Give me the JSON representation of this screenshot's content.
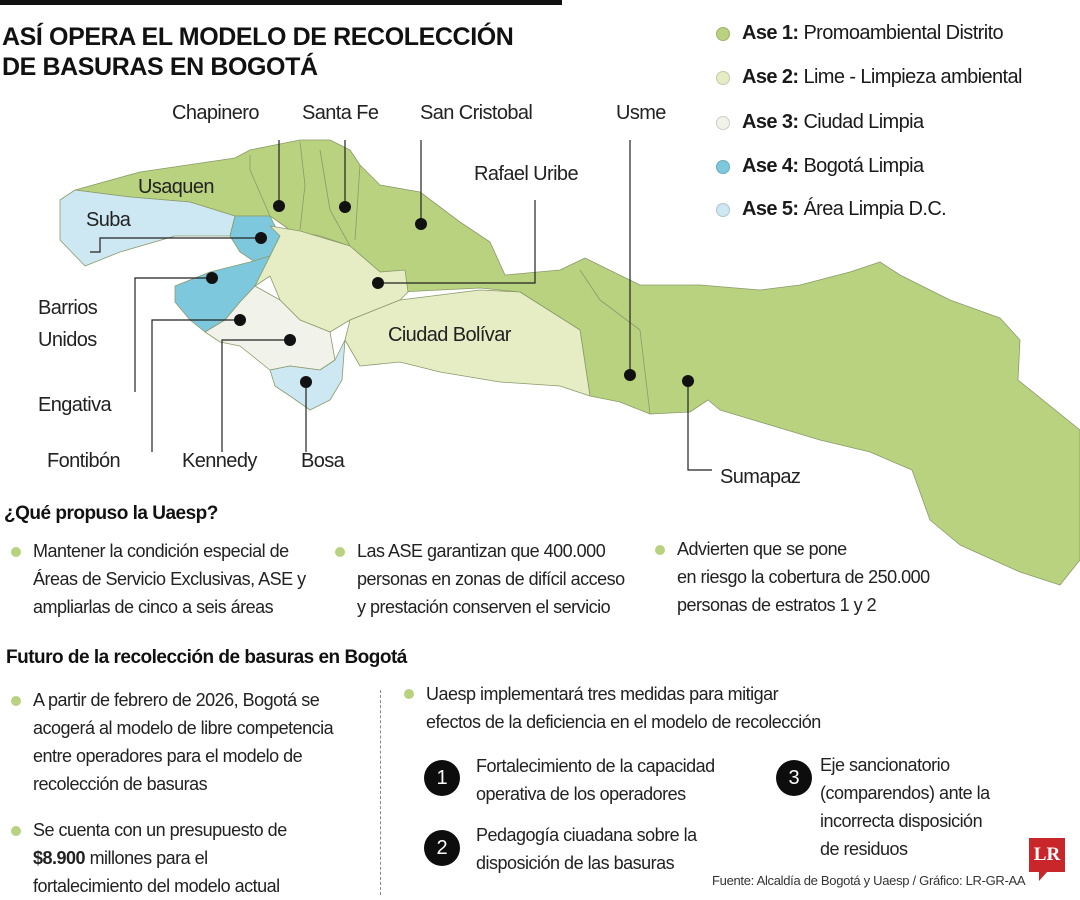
{
  "title": {
    "line1": "ASÍ OPERA EL MODELO DE RECOLECCIÓN",
    "line2": "DE BASURAS EN BOGOTÁ"
  },
  "legend": [
    {
      "key": "Ase 1:",
      "label": "Promoambiental Distrito",
      "color": "#b9d27f"
    },
    {
      "key": "Ase 2:",
      "label": "Lime - Limpieza ambiental",
      "color": "#e6edc4"
    },
    {
      "key": "Ase 3:",
      "label": "Ciudad Limpia",
      "color": "#f1f2ea"
    },
    {
      "key": "Ase 4:",
      "label": "Bogotá Limpia",
      "color": "#7ec8dd"
    },
    {
      "key": "Ase 5:",
      "label": "Área Limpia D.C.",
      "color": "#cde8f2"
    }
  ],
  "map_labels": {
    "chapinero": "Chapinero",
    "santa_fe": "Santa Fe",
    "san_cristobal": "San Cristobal",
    "usme": "Usme",
    "rafael_uribe": "Rafael Uribe",
    "usaquen": "Usaquen",
    "suba": "Suba",
    "barrios_unidos_1": "Barrios",
    "barrios_unidos_2": "Unidos",
    "engativa": "Engativa",
    "fontibon": "Fontibón",
    "kennedy": "Kennedy",
    "bosa": "Bosa",
    "ciudad_bolivar": "Ciudad Bolívar",
    "sumapaz": "Sumapaz"
  },
  "uaesp": {
    "heading": "¿Qué propuso la Uaesp?",
    "items": [
      [
        "Mantener la condición especial de",
        "Áreas de Servicio Exclusivas, ASE y",
        "ampliarlas de cinco a seis áreas"
      ],
      [
        "Las ASE garantizan que 400.000",
        "personas en zonas de difícil acceso",
        "y prestación conserven el servicio"
      ],
      [
        "Advierten que se pone",
        "en riesgo la cobertura de 250.000",
        "personas de estratos 1 y 2"
      ]
    ]
  },
  "futuro": {
    "heading": "Futuro de la recolección de basuras en Bogotá",
    "left": [
      [
        "A partir de febrero de 2026, Bogotá se",
        "acogerá al modelo de libre competencia",
        "entre operadores para el modelo de",
        "recolección de basuras"
      ],
      {
        "pre": "Se cuenta con un presupuesto de",
        "bold": "$8.900",
        "post": " millones para el",
        "last": "fortalecimiento del modelo actual"
      }
    ],
    "right_intro": [
      "Uaesp implementará tres medidas para mitigar",
      "efectos de la deficiencia en el modelo de recolección"
    ],
    "steps": [
      {
        "n": "1",
        "lines": [
          "Fortalecimiento de la capacidad",
          "operativa de los operadores"
        ]
      },
      {
        "n": "2",
        "lines": [
          "Pedagogía ciuadana sobre la",
          "disposición de las basuras"
        ]
      },
      {
        "n": "3",
        "lines": [
          "Eje sancionatorio",
          "(comparendos) ante la",
          "incorrecta disposición",
          "de residuos"
        ]
      }
    ]
  },
  "source": "Fuente: Alcaldía de Bogotá y Uaesp / Gráfico: LR-GR-AA",
  "logo": "LR"
}
